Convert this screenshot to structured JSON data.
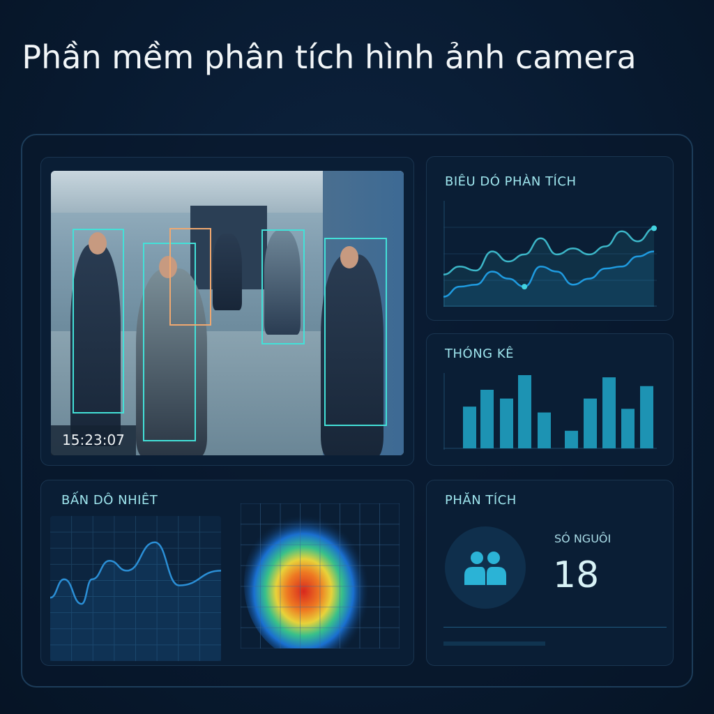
{
  "title": "Phần mềm phân tích hình ảnh camera",
  "camera": {
    "timestamp": "15:23:07",
    "detection_box_color": "#43e1d8",
    "highlight_box_color": "#f0a870"
  },
  "line_panel": {
    "title": "BIÊU DÓ PHÀN TÍCH"
  },
  "bar_panel": {
    "title": "THÓNG KÊ"
  },
  "heatmap_panel": {
    "title": "BẤN DÔ NHIÊT"
  },
  "people_panel": {
    "title": "PHĂN TÍCH",
    "label": "SÓ NGUÔI",
    "count": "18",
    "icon": "people-icon"
  },
  "chart_data": [
    {
      "type": "line",
      "series": [
        {
          "values": [
            32,
            40,
            36,
            55,
            45,
            52,
            68,
            52,
            58,
            52,
            60,
            75,
            65,
            78
          ]
        },
        {
          "values": [
            10,
            20,
            22,
            35,
            28,
            20,
            40,
            35,
            22,
            28,
            38,
            40,
            50,
            55
          ]
        }
      ]
    },
    {
      "type": "bar",
      "values": [
        57,
        80,
        68,
        100,
        49,
        24,
        68,
        97,
        54,
        85
      ]
    },
    {
      "type": "line",
      "values": [
        40,
        55,
        35,
        55,
        70,
        62,
        85,
        50,
        62
      ]
    },
    {
      "type": "heatmap",
      "peak": "center-left"
    }
  ],
  "colors": {
    "accent": "#43d3e0",
    "line1": "#3cb6c8",
    "line2": "#1f9be0",
    "bar": "#1d93b3"
  }
}
